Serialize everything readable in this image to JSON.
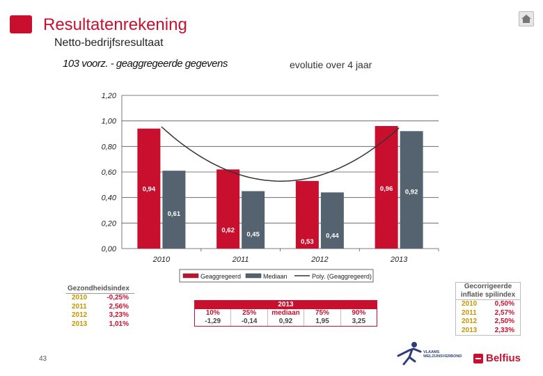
{
  "header": {
    "title": "Resultatenrekening",
    "subtitle": "Netto-bedrijfsresultaat",
    "chart_heading": "103 voorz. - geaggregeerde gegevens",
    "note": "evolutie over 4 jaar"
  },
  "colors": {
    "brand_red": "#c8102e",
    "median_gray": "#556370",
    "year_gold": "#c89500"
  },
  "chart_data": {
    "type": "bar",
    "categories": [
      "2010",
      "2011",
      "2012",
      "2013"
    ],
    "series": [
      {
        "name": "Geaggregeerd",
        "values": [
          0.94,
          0.62,
          0.53,
          0.96
        ],
        "labels": [
          "0,94",
          "0,62",
          "0,53",
          "0,96"
        ],
        "color": "#c8102e"
      },
      {
        "name": "Mediaan",
        "values": [
          0.61,
          0.45,
          0.44,
          0.92
        ],
        "labels": [
          "0,61",
          "0,45",
          "0,44",
          "0,92"
        ],
        "color": "#556370"
      }
    ],
    "trendline": {
      "name": "Poly. (Geaggregeerd)",
      "type": "polynomial"
    },
    "yticks": [
      "0,00",
      "0,20",
      "0,40",
      "0,60",
      "0,80",
      "1,00",
      "1,20"
    ],
    "ylim": [
      0,
      1.2
    ],
    "grid": true,
    "legend_position": "bottom"
  },
  "gezondheidsindex": {
    "title": "Gezondheidsindex",
    "rows": [
      {
        "year": "2010",
        "value": "-0,25%"
      },
      {
        "year": "2011",
        "value": "2,56%"
      },
      {
        "year": "2012",
        "value": "3,23%"
      },
      {
        "year": "2013",
        "value": "1,01%"
      }
    ]
  },
  "percentiles": {
    "year": "2013",
    "columns": [
      {
        "label": "10%",
        "value": "-1,29"
      },
      {
        "label": "25%",
        "value": "-0,14"
      },
      {
        "label": "mediaan",
        "value": "0,92"
      },
      {
        "label": "75%",
        "value": "1,95"
      },
      {
        "label": "90%",
        "value": "3,25"
      }
    ]
  },
  "inflatie": {
    "title_line1": "Gecorrigeerde",
    "title_line2": "inflatie spilindex",
    "rows": [
      {
        "year": "2010",
        "value": "0,50%"
      },
      {
        "year": "2011",
        "value": "2,57%"
      },
      {
        "year": "2012",
        "value": "2,50%"
      },
      {
        "year": "2013",
        "value": "2,33%"
      }
    ]
  },
  "footer": {
    "page_number": "43",
    "vlaams_line1": "VLAAMS",
    "vlaams_line2": "WELZIJNSVERBOND",
    "belfius": "Belfius"
  }
}
